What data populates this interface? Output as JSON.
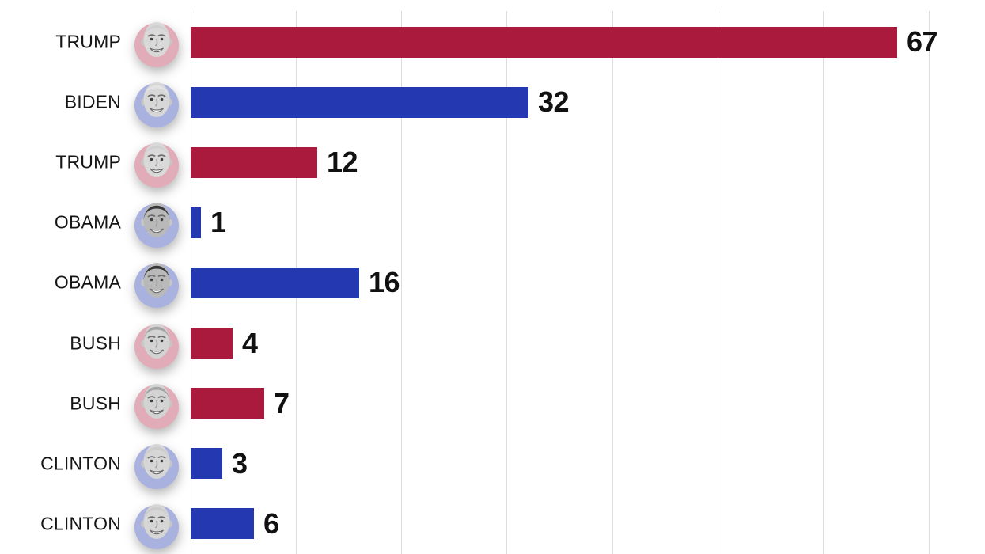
{
  "chart_data": {
    "type": "bar",
    "orientation": "horizontal",
    "title": "",
    "xlabel": "",
    "ylabel": "",
    "categories": [
      "TRUMP",
      "BIDEN",
      "TRUMP",
      "OBAMA",
      "OBAMA",
      "BUSH",
      "BUSH",
      "CLINTON",
      "CLINTON"
    ],
    "values": [
      67,
      32,
      12,
      1,
      16,
      4,
      7,
      3,
      6
    ],
    "parties": [
      "republican",
      "democrat",
      "republican",
      "democrat",
      "democrat",
      "republican",
      "republican",
      "democrat",
      "democrat"
    ],
    "value_labels": [
      "67",
      "32",
      "12",
      "1",
      "16",
      "4",
      "7",
      "3",
      "6"
    ],
    "x_axis": {
      "min": 0,
      "max_visible": 75,
      "gridline_interval_units": 10,
      "gridlines_shown": 8
    },
    "legend": "none",
    "grid": "vertical-only"
  },
  "colors": {
    "bar_republican": "#A91A3C",
    "bar_democrat": "#2438B1",
    "avatar_bg_republican": "#E2ABB8",
    "avatar_bg_democrat": "#A9B2DF",
    "gridline": "#DCDCDC",
    "label_text": "#161616",
    "value_text": "#111111",
    "background": "#FFFFFF"
  },
  "avatars": {
    "TRUMP": {
      "icon": "trump-face-icon",
      "hair": "#d0d0d0",
      "face": "#d9d9d9"
    },
    "BIDEN": {
      "icon": "biden-face-icon",
      "hair": "#e3e3e3",
      "face": "#d7d7d7"
    },
    "OBAMA": {
      "icon": "obama-face-icon",
      "hair": "#383838",
      "face": "#b9b9b9"
    },
    "BUSH": {
      "icon": "bush-face-icon",
      "hair": "#a3a3a3",
      "face": "#d3d3d3"
    },
    "CLINTON": {
      "icon": "clinton-face-icon",
      "hair": "#cbcbcb",
      "face": "#d6d6d6"
    }
  }
}
